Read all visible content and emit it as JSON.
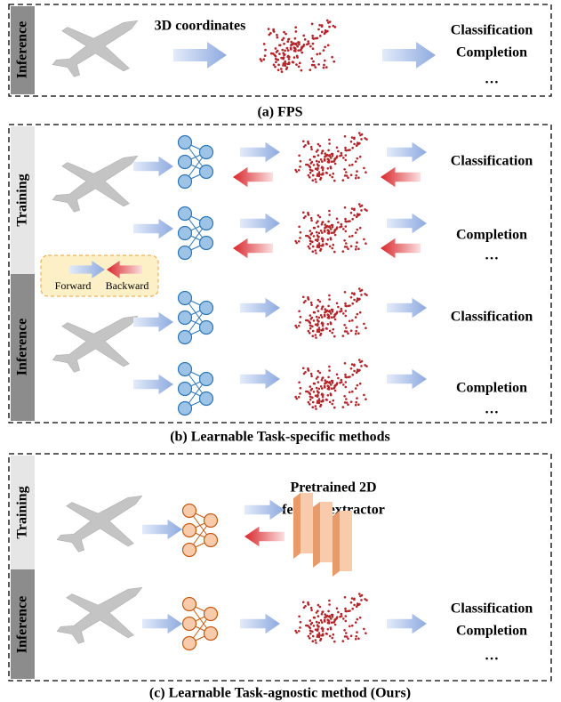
{
  "panel_a": {
    "side_label": "Inference",
    "input_label": "3D coordinates",
    "outputs": [
      "Classification",
      "Completion",
      "…"
    ],
    "caption": "(a) FPS"
  },
  "panel_b": {
    "side_labels": [
      "Training",
      "Inference"
    ],
    "legend": [
      "Forward",
      "Backward"
    ],
    "training_outputs": [
      "Classification",
      "Completion",
      "…"
    ],
    "inference_outputs": [
      "Classification",
      "Completion",
      "…"
    ],
    "caption": "(b) Learnable Task-specific methods"
  },
  "panel_c": {
    "side_labels": [
      "Training",
      "Inference"
    ],
    "extractor_label": [
      "Pretrained 2D",
      "feature extractor"
    ],
    "outputs": [
      "Classification",
      "Completion",
      "…"
    ],
    "caption": "(c) Learnable Task-agnostic method (Ours)"
  }
}
